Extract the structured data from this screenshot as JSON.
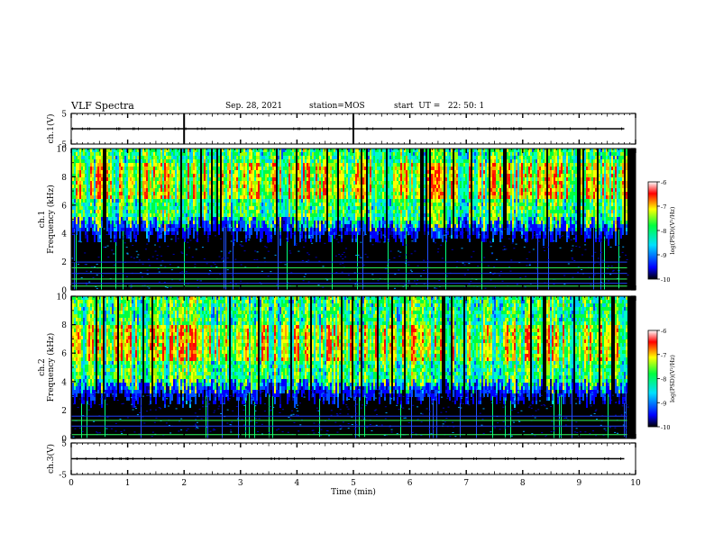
{
  "header": {
    "title": "VLF Spectra",
    "date": "Sep. 28, 2021",
    "station": "station=MOS",
    "start": "start  UT =   22: 50: 1"
  },
  "chart_data": [
    {
      "type": "line",
      "panel": "ch1-waveform",
      "ylabel": "ch.1(V)",
      "ylim": [
        -5,
        5
      ],
      "yticks": [
        "5",
        "-5"
      ],
      "xlim": [
        0,
        10
      ],
      "series": [
        {
          "x": [
            0,
            9.8
          ],
          "values": [
            0,
            0
          ]
        }
      ]
    },
    {
      "type": "heatmap",
      "panel": "ch1-spectrogram",
      "ylabel": "ch.1\nFrequency (kHz)",
      "ylim": [
        0,
        10
      ],
      "yticks": [
        "0",
        "2",
        "4",
        "6",
        "8",
        "10"
      ],
      "xlim": [
        0,
        10
      ],
      "colorbar": {
        "label": "log(PSD)(V²/Hz)",
        "range": [
          -10,
          -6
        ],
        "ticks": [
          "-6",
          "-7",
          "-8",
          "-9",
          "-10"
        ]
      },
      "band_khz": [
        4.5,
        10
      ],
      "peak_khz": [
        6.5,
        9
      ]
    },
    {
      "type": "heatmap",
      "panel": "ch2-spectrogram",
      "ylabel": "ch.2\nFrequency (kHz)",
      "ylim": [
        0,
        10
      ],
      "yticks": [
        "0",
        "2",
        "4",
        "6",
        "8",
        "10"
      ],
      "xlim": [
        0,
        10
      ],
      "colorbar": {
        "label": "log(PSD)(V²/Hz)",
        "range": [
          -10,
          -6
        ],
        "ticks": [
          "-6",
          "-7",
          "-8",
          "-9",
          "-10"
        ]
      },
      "band_khz": [
        3.5,
        10
      ],
      "peak_khz": [
        5.5,
        8
      ]
    },
    {
      "type": "line",
      "panel": "ch3-waveform",
      "ylabel": "ch.3(V)",
      "ylim": [
        -5,
        5
      ],
      "yticks": [
        "5",
        "-5"
      ],
      "xlim": [
        0,
        10
      ],
      "xlabel": "Time  (min)",
      "xticks": [
        "0",
        "1",
        "2",
        "3",
        "4",
        "5",
        "6",
        "7",
        "8",
        "9",
        "10"
      ],
      "series": [
        {
          "x": [
            0,
            9.8
          ],
          "values": [
            0,
            0
          ]
        }
      ]
    }
  ]
}
